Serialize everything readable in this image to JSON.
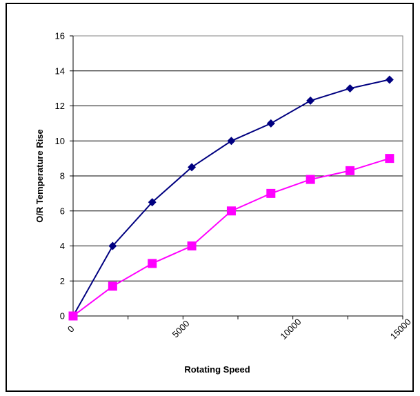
{
  "chart_data": {
    "type": "line",
    "title": "",
    "xlabel": "Rotating Speed",
    "ylabel": "O/R Temperature Rise",
    "xlim": [
      0,
      15000
    ],
    "ylim": [
      0,
      16
    ],
    "x_ticks": [
      0,
      5000,
      10000,
      15000
    ],
    "x_tick_labels": [
      "0",
      "5000",
      "10000",
      "15000"
    ],
    "y_ticks": [
      0,
      2,
      4,
      6,
      8,
      10,
      12,
      14,
      16
    ],
    "y_tick_labels": [
      "0",
      "2",
      "4",
      "6",
      "8",
      "10",
      "12",
      "14",
      "16"
    ],
    "grid": "horizontal",
    "legend": "none",
    "series": [
      {
        "color": "#000080",
        "marker": "diamond",
        "x": [
          0,
          1800,
          3600,
          5400,
          7200,
          9000,
          10800,
          12600,
          14400
        ],
        "y": [
          0,
          4,
          6.5,
          8.5,
          10,
          11,
          12.3,
          13,
          13.5
        ]
      },
      {
        "color": "#FF00FF",
        "marker": "square",
        "x": [
          0,
          1800,
          3600,
          5400,
          7200,
          9000,
          10800,
          12600,
          14400
        ],
        "y": [
          0,
          1.7,
          3,
          4,
          6,
          7,
          7.8,
          8.3,
          9
        ]
      }
    ]
  }
}
